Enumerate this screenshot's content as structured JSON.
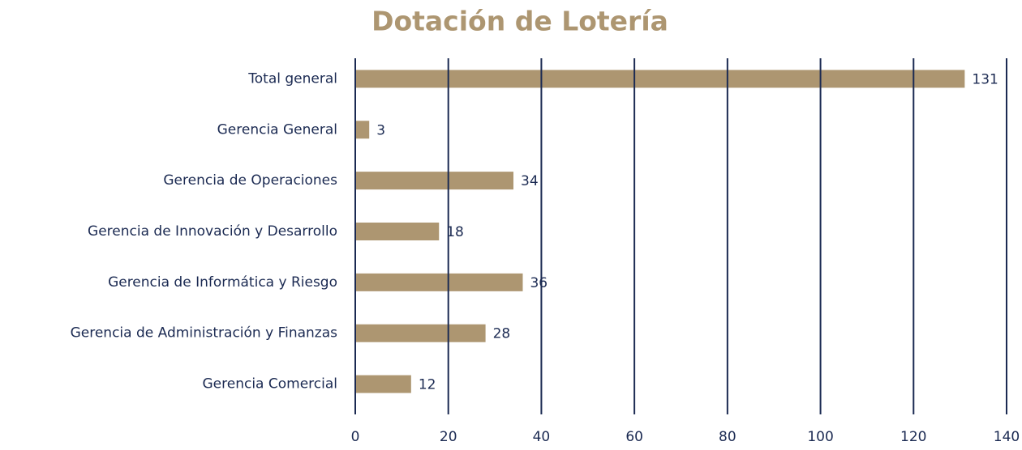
{
  "chart_data": {
    "type": "bar",
    "orientation": "horizontal",
    "title": "Dotación de Lotería",
    "categories": [
      "Total general",
      "Gerencia General",
      "Gerencia de Operaciones",
      "Gerencia de Innovación y Desarrollo",
      "Gerencia de Informática y Riesgo",
      "Gerencia de Administración y Finanzas",
      "Gerencia Comercial"
    ],
    "values": [
      131,
      3,
      34,
      18,
      36,
      28,
      12
    ],
    "color": "#ad9671",
    "xlim": [
      0,
      140
    ],
    "xticks": [
      0,
      20,
      40,
      60,
      80,
      100,
      120,
      140
    ],
    "grid": true,
    "grid_color": "#1b2a52"
  }
}
